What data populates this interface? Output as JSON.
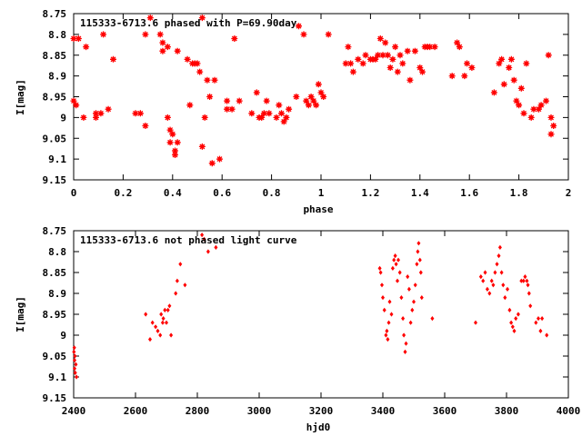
{
  "chart_data": [
    {
      "type": "scatter",
      "title": "115333-6713.6 phased with P=69.90day",
      "xlabel": "phase",
      "ylabel": "I[mag]",
      "xlim": [
        0,
        2
      ],
      "ylim": [
        9.15,
        8.75
      ],
      "y_inverted": true,
      "xticks": [
        0,
        0.2,
        0.4,
        0.6,
        0.8,
        1,
        1.2,
        1.4,
        1.6,
        1.8,
        2
      ],
      "xtick_labels": [
        "0",
        "0.2",
        "0.4",
        "0.6",
        "0.8",
        "1",
        "1.2",
        "1.4",
        "1.6",
        "1.8",
        "2"
      ],
      "yticks": [
        8.75,
        8.8,
        8.85,
        8.9,
        8.95,
        9,
        9.05,
        9.1,
        9.15
      ],
      "ytick_labels": [
        "8.75",
        "8.8",
        "8.85",
        "8.9",
        "8.95",
        "9",
        "9.05",
        "9.1",
        "9.15"
      ],
      "grid": false,
      "marker": "star",
      "color": "#ff0000",
      "series": [
        {
          "points": [
            [
              0.0,
              8.81
            ],
            [
              0.0,
              8.96
            ],
            [
              0.01,
              8.97
            ],
            [
              0.02,
              8.81
            ],
            [
              0.04,
              9.0
            ],
            [
              0.05,
              8.83
            ],
            [
              0.09,
              8.99
            ],
            [
              0.09,
              9.0
            ],
            [
              0.11,
              8.99
            ],
            [
              0.12,
              8.8
            ],
            [
              0.14,
              8.98
            ],
            [
              0.16,
              8.86
            ],
            [
              0.25,
              8.99
            ],
            [
              0.27,
              8.99
            ],
            [
              0.29,
              9.02
            ],
            [
              0.29,
              8.8
            ],
            [
              0.31,
              8.76
            ],
            [
              0.35,
              8.8
            ],
            [
              0.36,
              8.82
            ],
            [
              0.36,
              8.84
            ],
            [
              0.38,
              9.0
            ],
            [
              0.38,
              8.83
            ],
            [
              0.39,
              9.03
            ],
            [
              0.39,
              9.06
            ],
            [
              0.4,
              9.04
            ],
            [
              0.41,
              9.08
            ],
            [
              0.41,
              9.09
            ],
            [
              0.42,
              9.06
            ],
            [
              0.42,
              8.84
            ],
            [
              0.46,
              8.86
            ],
            [
              0.47,
              8.97
            ],
            [
              0.48,
              8.87
            ],
            [
              0.49,
              8.87
            ],
            [
              0.5,
              8.87
            ],
            [
              0.51,
              8.89
            ],
            [
              0.52,
              9.07
            ],
            [
              0.52,
              8.76
            ],
            [
              0.53,
              9.0
            ],
            [
              0.54,
              8.91
            ],
            [
              0.55,
              8.95
            ],
            [
              0.56,
              9.11
            ],
            [
              0.57,
              8.91
            ],
            [
              0.59,
              9.1
            ],
            [
              0.62,
              8.96
            ],
            [
              0.62,
              8.98
            ],
            [
              0.64,
              8.98
            ],
            [
              0.65,
              8.81
            ],
            [
              0.67,
              8.96
            ],
            [
              0.72,
              8.99
            ],
            [
              0.74,
              8.94
            ],
            [
              0.75,
              9.0
            ],
            [
              0.76,
              9.0
            ],
            [
              0.77,
              8.99
            ],
            [
              0.78,
              8.96
            ],
            [
              0.79,
              8.99
            ],
            [
              0.82,
              9.0
            ],
            [
              0.83,
              8.97
            ],
            [
              0.84,
              8.99
            ],
            [
              0.85,
              9.01
            ],
            [
              0.86,
              9.0
            ],
            [
              0.87,
              8.98
            ],
            [
              0.9,
              8.95
            ],
            [
              0.91,
              8.78
            ],
            [
              0.93,
              8.8
            ],
            [
              0.94,
              8.96
            ],
            [
              0.95,
              8.97
            ],
            [
              0.96,
              8.95
            ],
            [
              0.97,
              8.96
            ],
            [
              0.98,
              8.97
            ],
            [
              0.99,
              8.92
            ],
            [
              1.0,
              8.94
            ],
            [
              1.01,
              8.95
            ],
            [
              1.03,
              8.8
            ],
            [
              1.1,
              8.87
            ],
            [
              1.11,
              8.83
            ],
            [
              1.12,
              8.87
            ],
            [
              1.13,
              8.89
            ],
            [
              1.15,
              8.86
            ],
            [
              1.17,
              8.87
            ],
            [
              1.18,
              8.85
            ],
            [
              1.2,
              8.86
            ],
            [
              1.21,
              8.86
            ],
            [
              1.22,
              8.86
            ],
            [
              1.23,
              8.85
            ],
            [
              1.24,
              8.81
            ],
            [
              1.25,
              8.85
            ],
            [
              1.26,
              8.82
            ],
            [
              1.27,
              8.85
            ],
            [
              1.28,
              8.88
            ],
            [
              1.29,
              8.86
            ],
            [
              1.3,
              8.83
            ],
            [
              1.31,
              8.89
            ],
            [
              1.32,
              8.85
            ],
            [
              1.33,
              8.87
            ],
            [
              1.35,
              8.84
            ],
            [
              1.36,
              8.91
            ],
            [
              1.38,
              8.84
            ],
            [
              1.4,
              8.88
            ],
            [
              1.41,
              8.89
            ],
            [
              1.42,
              8.83
            ],
            [
              1.43,
              8.83
            ],
            [
              1.44,
              8.83
            ],
            [
              1.46,
              8.83
            ],
            [
              1.53,
              8.9
            ],
            [
              1.55,
              8.82
            ],
            [
              1.56,
              8.83
            ],
            [
              1.58,
              8.9
            ],
            [
              1.59,
              8.87
            ],
            [
              1.61,
              8.88
            ],
            [
              1.7,
              8.94
            ],
            [
              1.72,
              8.87
            ],
            [
              1.73,
              8.86
            ],
            [
              1.74,
              8.92
            ],
            [
              1.76,
              8.88
            ],
            [
              1.77,
              8.86
            ],
            [
              1.78,
              8.91
            ],
            [
              1.79,
              8.96
            ],
            [
              1.8,
              8.97
            ],
            [
              1.81,
              8.93
            ],
            [
              1.82,
              8.99
            ],
            [
              1.83,
              8.87
            ],
            [
              1.85,
              9.0
            ],
            [
              1.86,
              8.98
            ],
            [
              1.88,
              8.98
            ],
            [
              1.89,
              8.97
            ],
            [
              1.91,
              8.96
            ],
            [
              1.92,
              8.85
            ],
            [
              1.93,
              9.04
            ],
            [
              1.93,
              9.0
            ],
            [
              1.94,
              9.02
            ]
          ]
        }
      ]
    },
    {
      "type": "scatter",
      "title": "115333-6713.6 not phased light curve",
      "xlabel": "hjd0",
      "ylabel": "I[mag]",
      "xlim": [
        2400,
        4000
      ],
      "ylim": [
        9.15,
        8.75
      ],
      "y_inverted": true,
      "xticks": [
        2400,
        2600,
        2800,
        3000,
        3200,
        3400,
        3600,
        3800,
        4000
      ],
      "xtick_labels": [
        "2400",
        "2600",
        "2800",
        "3000",
        "3200",
        "3400",
        "3600",
        "3800",
        "4000"
      ],
      "yticks": [
        8.75,
        8.8,
        8.85,
        8.9,
        8.95,
        9,
        9.05,
        9.1,
        9.15
      ],
      "ytick_labels": [
        "8.75",
        "8.8",
        "8.85",
        "8.9",
        "8.95",
        "9",
        "9.05",
        "9.1",
        "9.15"
      ],
      "grid": false,
      "marker": "diamond",
      "color": "#ff0000",
      "series": [
        {
          "points": [
            [
              2401,
              9.04
            ],
            [
              2402,
              9.03
            ],
            [
              2403,
              9.06
            ],
            [
              2403,
              9.08
            ],
            [
              2404,
              9.05
            ],
            [
              2405,
              9.09
            ],
            [
              2407,
              9.07
            ],
            [
              2409,
              9.1
            ],
            [
              2633,
              8.95
            ],
            [
              2647,
              9.01
            ],
            [
              2655,
              8.97
            ],
            [
              2665,
              8.98
            ],
            [
              2672,
              8.99
            ],
            [
              2680,
              9.0
            ],
            [
              2683,
              8.95
            ],
            [
              2688,
              8.97
            ],
            [
              2690,
              8.96
            ],
            [
              2695,
              8.94
            ],
            [
              2700,
              8.97
            ],
            [
              2705,
              8.94
            ],
            [
              2710,
              8.93
            ],
            [
              2715,
              9.0
            ],
            [
              2730,
              8.9
            ],
            [
              2735,
              8.87
            ],
            [
              2745,
              8.83
            ],
            [
              2760,
              8.88
            ],
            [
              2815,
              8.76
            ],
            [
              2822,
              8.77
            ],
            [
              2835,
              8.8
            ],
            [
              2860,
              8.79
            ],
            [
              3390,
              8.84
            ],
            [
              3393,
              8.85
            ],
            [
              3397,
              8.88
            ],
            [
              3400,
              8.91
            ],
            [
              3405,
              8.94
            ],
            [
              3410,
              9.0
            ],
            [
              3413,
              8.99
            ],
            [
              3416,
              9.01
            ],
            [
              3419,
              8.97
            ],
            [
              3422,
              8.92
            ],
            [
              3428,
              8.95
            ],
            [
              3432,
              8.84
            ],
            [
              3436,
              8.82
            ],
            [
              3440,
              8.81
            ],
            [
              3443,
              8.83
            ],
            [
              3447,
              8.87
            ],
            [
              3450,
              8.82
            ],
            [
              3455,
              8.85
            ],
            [
              3460,
              8.91
            ],
            [
              3465,
              8.96
            ],
            [
              3468,
              9.0
            ],
            [
              3472,
              9.04
            ],
            [
              3475,
              9.02
            ],
            [
              3480,
              8.86
            ],
            [
              3485,
              8.89
            ],
            [
              3490,
              8.97
            ],
            [
              3495,
              8.94
            ],
            [
              3500,
              8.92
            ],
            [
              3505,
              8.88
            ],
            [
              3510,
              8.83
            ],
            [
              3513,
              8.8
            ],
            [
              3516,
              8.78
            ],
            [
              3520,
              8.82
            ],
            [
              3523,
              8.85
            ],
            [
              3526,
              8.91
            ],
            [
              3560,
              8.96
            ],
            [
              3700,
              8.97
            ],
            [
              3717,
              8.86
            ],
            [
              3724,
              8.87
            ],
            [
              3731,
              8.85
            ],
            [
              3738,
              8.89
            ],
            [
              3745,
              8.9
            ],
            [
              3752,
              8.87
            ],
            [
              3757,
              8.88
            ],
            [
              3763,
              8.85
            ],
            [
              3769,
              8.83
            ],
            [
              3775,
              8.81
            ],
            [
              3779,
              8.79
            ],
            [
              3784,
              8.85
            ],
            [
              3789,
              8.88
            ],
            [
              3795,
              8.91
            ],
            [
              3803,
              8.89
            ],
            [
              3810,
              8.94
            ],
            [
              3815,
              8.97
            ],
            [
              3820,
              8.98
            ],
            [
              3825,
              8.99
            ],
            [
              3830,
              8.96
            ],
            [
              3838,
              8.95
            ],
            [
              3848,
              8.87
            ],
            [
              3855,
              8.87
            ],
            [
              3860,
              8.86
            ],
            [
              3866,
              8.87
            ],
            [
              3869,
              8.88
            ],
            [
              3873,
              8.9
            ],
            [
              3877,
              8.93
            ],
            [
              3895,
              8.97
            ],
            [
              3903,
              8.96
            ],
            [
              3910,
              8.99
            ],
            [
              3915,
              8.96
            ],
            [
              3930,
              9.0
            ]
          ]
        }
      ]
    }
  ]
}
